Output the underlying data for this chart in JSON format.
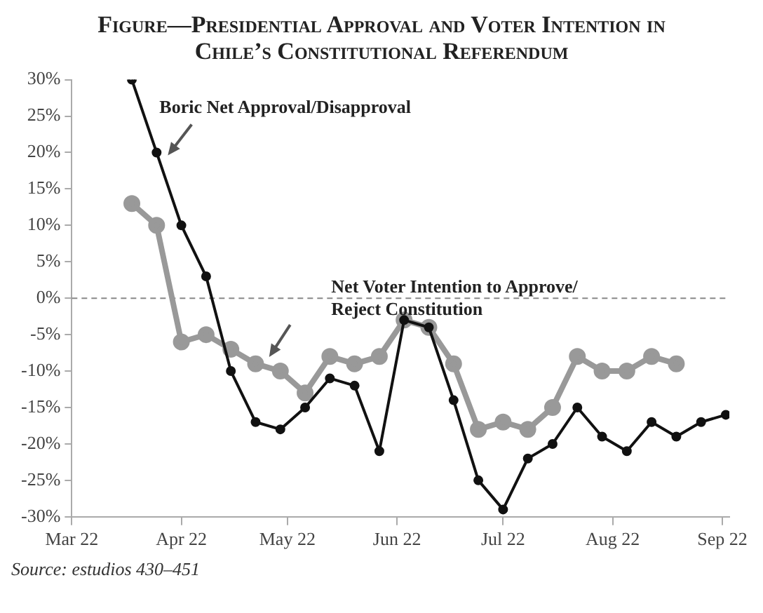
{
  "chart_data": {
    "type": "line",
    "title": "Figure—Presidential Approval and Voter Intention in Chile’s Constitutional Referendum",
    "x": [
      "2022-03-18",
      "2022-03-25",
      "2022-04-01",
      "2022-04-08",
      "2022-04-15",
      "2022-04-22",
      "2022-04-29",
      "2022-05-06",
      "2022-05-13",
      "2022-05-20",
      "2022-05-27",
      "2022-06-03",
      "2022-06-10",
      "2022-06-17",
      "2022-06-24",
      "2022-07-01",
      "2022-07-08",
      "2022-07-15",
      "2022-07-22",
      "2022-07-29",
      "2022-08-05",
      "2022-08-12",
      "2022-08-19",
      "2022-08-26",
      "2022-09-02"
    ],
    "series": [
      {
        "name": "Boric Net Approval/Disapproval",
        "color": "#111111",
        "values": [
          30,
          20,
          10,
          3,
          -10,
          -17,
          -18,
          -15,
          -11,
          -12,
          -21,
          -3,
          -4,
          -14,
          -25,
          -29,
          -22,
          -20,
          -15,
          -19,
          -21,
          -17,
          -19,
          -17,
          -16
        ]
      },
      {
        "name": "Net Voter Intention to Approve/ Reject Constitution",
        "color": "#999999",
        "values": [
          13,
          10,
          -6,
          -5,
          -7,
          -9,
          -10,
          -13,
          -8,
          -9,
          -8,
          -3,
          -4,
          -9,
          -18,
          -17,
          -18,
          -15,
          -8,
          -10,
          -10,
          -8,
          -9,
          null,
          null
        ]
      }
    ],
    "xlim": [
      "2022-03-01",
      "2022-09-03"
    ],
    "xticks": [
      {
        "value": "2022-03-01",
        "label": "Mar 22"
      },
      {
        "value": "2022-04-01",
        "label": "Apr 22"
      },
      {
        "value": "2022-05-01",
        "label": "May 22"
      },
      {
        "value": "2022-06-01",
        "label": "Jun 22"
      },
      {
        "value": "2022-07-01",
        "label": "Jul 22"
      },
      {
        "value": "2022-08-01",
        "label": "Aug 22"
      },
      {
        "value": "2022-09-01",
        "label": "Sep 22"
      }
    ],
    "ylim": [
      -30,
      30
    ],
    "yticks": [
      {
        "value": -30,
        "label": "-30%"
      },
      {
        "value": -25,
        "label": "-25%"
      },
      {
        "value": -20,
        "label": "-20%"
      },
      {
        "value": -15,
        "label": "-15%"
      },
      {
        "value": -10,
        "label": "-10%"
      },
      {
        "value": -5,
        "label": "-5%"
      },
      {
        "value": 0,
        "label": "0%"
      },
      {
        "value": 5,
        "label": "5%"
      },
      {
        "value": 10,
        "label": "10%"
      },
      {
        "value": 15,
        "label": "15%"
      },
      {
        "value": 20,
        "label": "20%"
      },
      {
        "value": 25,
        "label": "25%"
      },
      {
        "value": 30,
        "label": "30%"
      }
    ],
    "ref_lines": [
      {
        "axis": "y",
        "value": 0,
        "color": "#888888",
        "line_style": "dashed"
      }
    ],
    "grid": false,
    "marker": "circle",
    "line_style": "solid",
    "annotations": [
      "Source: estudios 430–451"
    ]
  }
}
